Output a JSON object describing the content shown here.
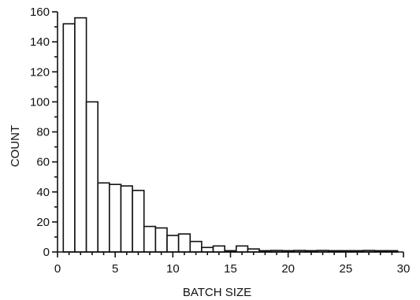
{
  "chart_data": {
    "type": "bar",
    "title": "",
    "xlabel": "BATCH SIZE",
    "ylabel": "COUNT",
    "xlim": [
      0,
      30
    ],
    "ylim": [
      0,
      160
    ],
    "xticks": [
      0,
      5,
      10,
      15,
      20,
      25,
      30
    ],
    "yticks": [
      0,
      20,
      40,
      60,
      80,
      100,
      120,
      140,
      160
    ],
    "grid": false,
    "bins": [
      1,
      2,
      3,
      4,
      5,
      6,
      7,
      8,
      9,
      10,
      11,
      12,
      13,
      14,
      15,
      16,
      17,
      18,
      19,
      20,
      21,
      22,
      23,
      24,
      25,
      26,
      27,
      28,
      29
    ],
    "values": [
      152,
      156,
      100,
      46,
      45,
      44,
      41,
      17,
      16,
      11,
      12,
      7,
      3,
      4,
      0,
      4,
      2,
      0,
      1,
      0,
      1,
      0,
      1,
      0,
      0,
      0,
      1,
      0,
      0
    ],
    "colors": {
      "bar_fill": "#ffffff",
      "bar_edge": "#111111",
      "axis": "#111111"
    }
  }
}
